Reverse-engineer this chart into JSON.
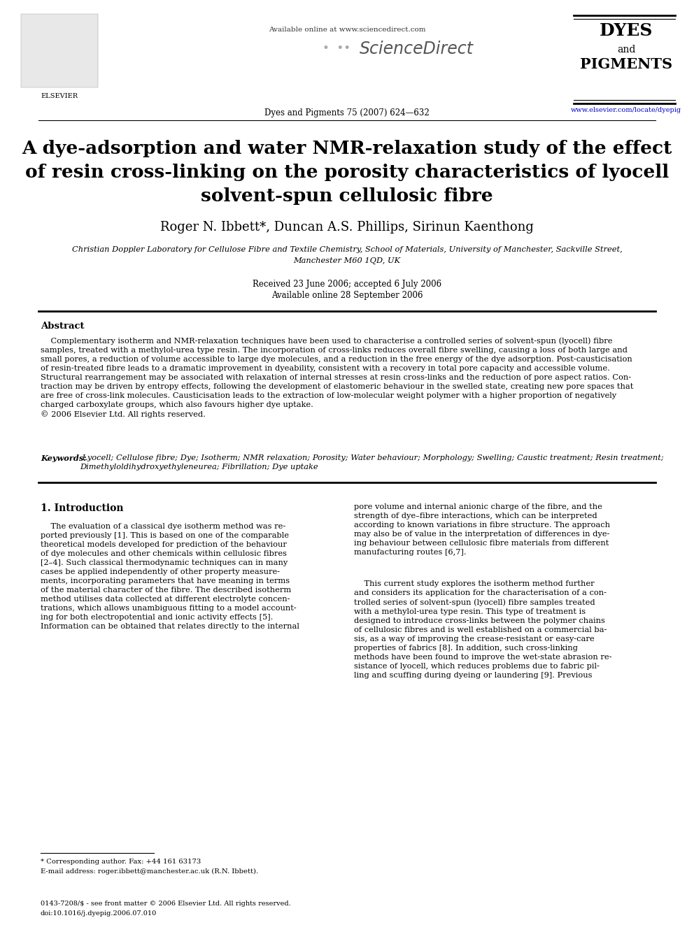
{
  "page_width": 9.92,
  "page_height": 13.23,
  "dpi": 100,
  "bg_color": "#ffffff",
  "header_available_online": "Available online at www.sciencedirect.com",
  "header_sciencedirect": "ScienceDirect",
  "header_journal_info": "Dyes and Pigments 75 (2007) 624—632",
  "header_journal_url": "www.elsevier.com/locate/dyepig",
  "header_dyes": "DYES",
  "header_and": "and",
  "header_pigments": "PIGMENTS",
  "header_elsevier": "ELSEVIER",
  "title_line1": "A dye-adsorption and water NMR-relaxation study of the effect",
  "title_line2": "of resin cross-linking on the porosity characteristics of lyocell",
  "title_line3": "solvent-spun cellulosic fibre",
  "authors": "Roger N. Ibbett*, Duncan A.S. Phillips, Sirinun Kaenthong",
  "affil1": "Christian Doppler Laboratory for Cellulose Fibre and Textile Chemistry, School of Materials, University of Manchester, Sackville Street,",
  "affil2": "Manchester M60 1QD, UK",
  "date1": "Received 23 June 2006; accepted 6 July 2006",
  "date2": "Available online 28 September 2006",
  "abstract_head": "Abstract",
  "abstract_body": "    Complementary isotherm and NMR-relaxation techniques have been used to characterise a controlled series of solvent-spun (lyocell) fibre\nsamples, treated with a methylol-urea type resin. The incorporation of cross-links reduces overall fibre swelling, causing a loss of both large and\nsmall pores, a reduction of volume accessible to large dye molecules, and a reduction in the free energy of the dye adsorption. Post-causticisation\nof resin-treated fibre leads to a dramatic improvement in dyeability, consistent with a recovery in total pore capacity and accessible volume.\nStructural rearrangement may be associated with relaxation of internal stresses at resin cross-links and the reduction of pore aspect ratios. Con-\ntraction may be driven by entropy effects, following the development of elastomeric behaviour in the swelled state, creating new pore spaces that\nare free of cross-link molecules. Causticisation leads to the extraction of low-molecular weight polymer with a higher proportion of negatively\ncharged carboxylate groups, which also favours higher dye uptake.\n© 2006 Elsevier Ltd. All rights reserved.",
  "kw_label": "Keywords:",
  "kw_body": " Lyocell; Cellulose fibre; Dye; Isotherm; NMR relaxation; Porosity; Water behaviour; Morphology; Swelling; Caustic treatment; Resin treatment;\nDimethyloldihydroxyethyleneurea; Fibrillation; Dye uptake",
  "sec1_head": "1. Introduction",
  "col1_text": "    The evaluation of a classical dye isotherm method was re-\nported previously [1]. This is based on one of the comparable\ntheoretical models developed for prediction of the behaviour\nof dye molecules and other chemicals within cellulosic fibres\n[2–4]. Such classical thermodynamic techniques can in many\ncases be applied independently of other property measure-\nments, incorporating parameters that have meaning in terms\nof the material character of the fibre. The described isotherm\nmethod utilises data collected at different electrolyte concen-\ntrations, which allows unambiguous fitting to a model account-\ning for both electropotential and ionic activity effects [5].\nInformation can be obtained that relates directly to the internal",
  "col2_p1": "pore volume and internal anionic charge of the fibre, and the\nstrength of dye–fibre interactions, which can be interpreted\naccording to known variations in fibre structure. The approach\nmay also be of value in the interpretation of differences in dye-\ning behaviour between cellulosic fibre materials from different\nmanufacturing routes [6,7].",
  "col2_p2": "    This current study explores the isotherm method further\nand considers its application for the characterisation of a con-\ntrolled series of solvent-spun (lyocell) fibre samples treated\nwith a methylol-urea type resin. This type of treatment is\ndesigned to introduce cross-links between the polymer chains\nof cellulosic fibres and is well established on a commercial ba-\nsis, as a way of improving the crease-resistant or easy-care\nproperties of fabrics [8]. In addition, such cross-linking\nmethods have been found to improve the wet-state abrasion re-\nsistance of lyocell, which reduces problems due to fabric pil-\nling and scuffing during dyeing or laundering [9]. Previous",
  "footnote1": "* Corresponding author. Fax: +44 161 63173",
  "footnote2": "E-mail address: roger.ibbett@manchester.ac.uk (R.N. Ibbett).",
  "footer1": "0143-7208/$ - see front matter © 2006 Elsevier Ltd. All rights reserved.",
  "footer2": "doi:10.1016/j.dyepig.2006.07.010"
}
